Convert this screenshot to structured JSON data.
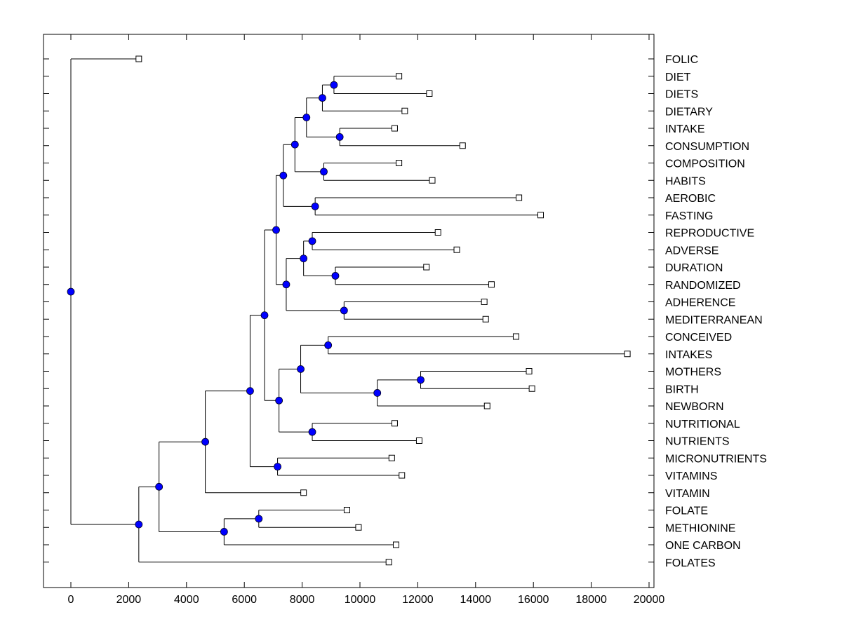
{
  "chart_data": {
    "type": "dendrogram",
    "title": "",
    "xlabel": "",
    "ylabel": "",
    "xlim": [
      -1000,
      20000
    ],
    "xticks": [
      0,
      2000,
      4000,
      6000,
      8000,
      10000,
      12000,
      14000,
      16000,
      18000,
      20000
    ],
    "xtick_labels": [
      "0",
      "2000",
      "4000",
      "6000",
      "8000",
      "10000",
      "12000",
      "14000",
      "16000",
      "18000",
      "20000"
    ],
    "grid": false,
    "colors": {
      "internal_node": "#0000ff",
      "leaf_node_fill": "#ffffff",
      "line": "#000000"
    },
    "leaves": [
      {
        "label": "FOLIC",
        "x": 2350
      },
      {
        "label": "DIET",
        "x": 11350
      },
      {
        "label": "DIETS",
        "x": 12400
      },
      {
        "label": "DIETARY",
        "x": 11550
      },
      {
        "label": "INTAKE",
        "x": 11200
      },
      {
        "label": "CONSUMPTION",
        "x": 13550
      },
      {
        "label": "COMPOSITION",
        "x": 11350
      },
      {
        "label": "HABITS",
        "x": 12500
      },
      {
        "label": "AEROBIC",
        "x": 15500
      },
      {
        "label": "FASTING",
        "x": 16250
      },
      {
        "label": "REPRODUCTIVE",
        "x": 12700
      },
      {
        "label": "ADVERSE",
        "x": 13350
      },
      {
        "label": "DURATION",
        "x": 12300
      },
      {
        "label": "RANDOMIZED",
        "x": 14550
      },
      {
        "label": "ADHERENCE",
        "x": 14300
      },
      {
        "label": "MEDITERRANEAN",
        "x": 14350
      },
      {
        "label": "CONCEIVED",
        "x": 15400
      },
      {
        "label": "INTAKES",
        "x": 19250
      },
      {
        "label": "MOTHERS",
        "x": 15850
      },
      {
        "label": "BIRTH",
        "x": 15950
      },
      {
        "label": "NEWBORN",
        "x": 14400
      },
      {
        "label": "NUTRITIONAL",
        "x": 11200
      },
      {
        "label": "NUTRIENTS",
        "x": 12050
      },
      {
        "label": "MICRONUTRIENTS",
        "x": 11100
      },
      {
        "label": "VITAMINS",
        "x": 11450
      },
      {
        "label": "VITAMIN",
        "x": 8050
      },
      {
        "label": "FOLATE",
        "x": 9550
      },
      {
        "label": "METHIONINE",
        "x": 9950
      },
      {
        "label": "ONE CARBON",
        "x": 11250
      },
      {
        "label": "FOLATES",
        "x": 11000
      }
    ],
    "internal_nodes": [
      {
        "id": "n_diet_diets",
        "x": 9100,
        "children": [
          "DIET",
          "DIETS"
        ]
      },
      {
        "id": "n_diet_dietary",
        "x": 8700,
        "children": [
          "n_diet_diets",
          "DIETARY"
        ]
      },
      {
        "id": "n_intake_cons",
        "x": 9300,
        "children": [
          "INTAKE",
          "CONSUMPTION"
        ]
      },
      {
        "id": "n_diet_intake",
        "x": 8150,
        "children": [
          "n_diet_dietary",
          "n_intake_cons"
        ]
      },
      {
        "id": "n_comp_habits",
        "x": 8750,
        "children": [
          "COMPOSITION",
          "HABITS"
        ]
      },
      {
        "id": "n_diet_comp",
        "x": 7750,
        "children": [
          "n_diet_intake",
          "n_comp_habits"
        ]
      },
      {
        "id": "n_aer_fast",
        "x": 8450,
        "children": [
          "AEROBIC",
          "FASTING"
        ]
      },
      {
        "id": "n_upper_a",
        "x": 7350,
        "children": [
          "n_diet_comp",
          "n_aer_fast"
        ]
      },
      {
        "id": "n_repr_adv",
        "x": 8350,
        "children": [
          "REPRODUCTIVE",
          "ADVERSE"
        ]
      },
      {
        "id": "n_dur_rand",
        "x": 9150,
        "children": [
          "DURATION",
          "RANDOMIZED"
        ]
      },
      {
        "id": "n_repr_dur",
        "x": 8050,
        "children": [
          "n_repr_adv",
          "n_dur_rand"
        ]
      },
      {
        "id": "n_adh_med",
        "x": 9450,
        "children": [
          "ADHERENCE",
          "MEDITERRANEAN"
        ]
      },
      {
        "id": "n_upper_b",
        "x": 7450,
        "children": [
          "n_repr_dur",
          "n_adh_med"
        ]
      },
      {
        "id": "n_upper",
        "x": 7100,
        "children": [
          "n_upper_a",
          "n_upper_b"
        ]
      },
      {
        "id": "n_conc_int",
        "x": 8900,
        "children": [
          "CONCEIVED",
          "INTAKES"
        ]
      },
      {
        "id": "n_moth_birth",
        "x": 12100,
        "children": [
          "MOTHERS",
          "BIRTH"
        ]
      },
      {
        "id": "n_moth_newb",
        "x": 10600,
        "children": [
          "n_moth_birth",
          "NEWBORN"
        ]
      },
      {
        "id": "n_conc_moth",
        "x": 7950,
        "children": [
          "n_conc_int",
          "n_moth_newb"
        ]
      },
      {
        "id": "n_nutr",
        "x": 8350,
        "children": [
          "NUTRITIONAL",
          "NUTRIENTS"
        ]
      },
      {
        "id": "n_conc_nutr",
        "x": 7200,
        "children": [
          "n_conc_moth",
          "n_nutr"
        ]
      },
      {
        "id": "n_mid",
        "x": 6700,
        "children": [
          "n_upper",
          "n_conc_nutr"
        ]
      },
      {
        "id": "n_micro_vit",
        "x": 7150,
        "children": [
          "MICRONUTRIENTS",
          "VITAMINS"
        ]
      },
      {
        "id": "n_mid_micro",
        "x": 6200,
        "children": [
          "n_mid",
          "n_micro_vit"
        ]
      },
      {
        "id": "n_mid_vitamin",
        "x": 4650,
        "children": [
          "n_mid_micro",
          "VITAMIN"
        ]
      },
      {
        "id": "n_fol_meth",
        "x": 6500,
        "children": [
          "FOLATE",
          "METHIONINE"
        ]
      },
      {
        "id": "n_fol_one",
        "x": 5300,
        "children": [
          "n_fol_meth",
          "ONE CARBON"
        ]
      },
      {
        "id": "n_big",
        "x": 3050,
        "children": [
          "n_mid_vitamin",
          "n_fol_one"
        ]
      },
      {
        "id": "n_big_folates",
        "x": 2350,
        "children": [
          "n_big",
          "FOLATES"
        ]
      },
      {
        "id": "root",
        "x": 0,
        "children": [
          "FOLIC",
          "n_big_folates"
        ]
      }
    ]
  }
}
